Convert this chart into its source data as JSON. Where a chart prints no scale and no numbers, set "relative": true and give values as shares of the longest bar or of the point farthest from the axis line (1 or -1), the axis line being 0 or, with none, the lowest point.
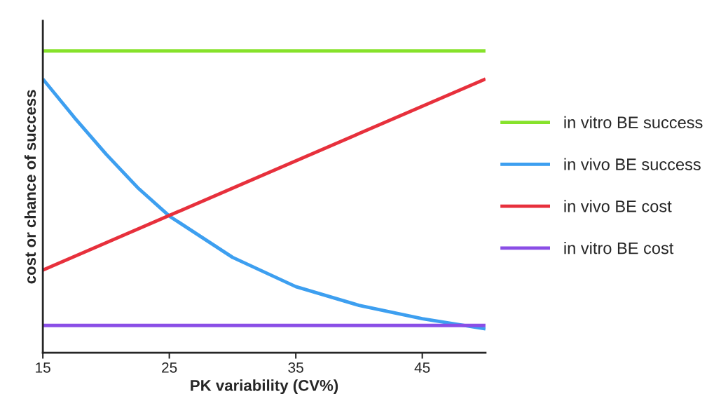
{
  "chart_data": {
    "type": "line",
    "relative": true,
    "xlabel": "PK variability (CV%)",
    "ylabel": "cost or chance of success",
    "xlim": [
      15,
      50
    ],
    "xticks": [
      15,
      25,
      35,
      45
    ],
    "tick_labels": "x",
    "legend": "right",
    "grid": false,
    "line_style": "solid",
    "marker": "none",
    "series": [
      {
        "name": "in vitro BE success",
        "color": "#86e22a",
        "x": [
          15,
          50
        ],
        "values": [
          1,
          1
        ]
      },
      {
        "name": "in vivo BE success",
        "color": "#3d9ff0",
        "x": [
          15,
          17.5,
          20,
          22.5,
          25,
          30,
          35,
          40,
          45,
          50
        ],
        "values": [
          0.907,
          0.779,
          0.658,
          0.547,
          0.453,
          0.316,
          0.219,
          0.157,
          0.113,
          0.079
        ]
      },
      {
        "name": "in vivo BE cost",
        "color": "#e7303c",
        "x": [
          15,
          50
        ],
        "values": [
          0.274,
          0.907
        ]
      },
      {
        "name": "in vitro BE cost",
        "color": "#8a4ee6",
        "x": [
          15,
          50
        ],
        "values": [
          0.0905,
          0.0905
        ]
      }
    ]
  }
}
